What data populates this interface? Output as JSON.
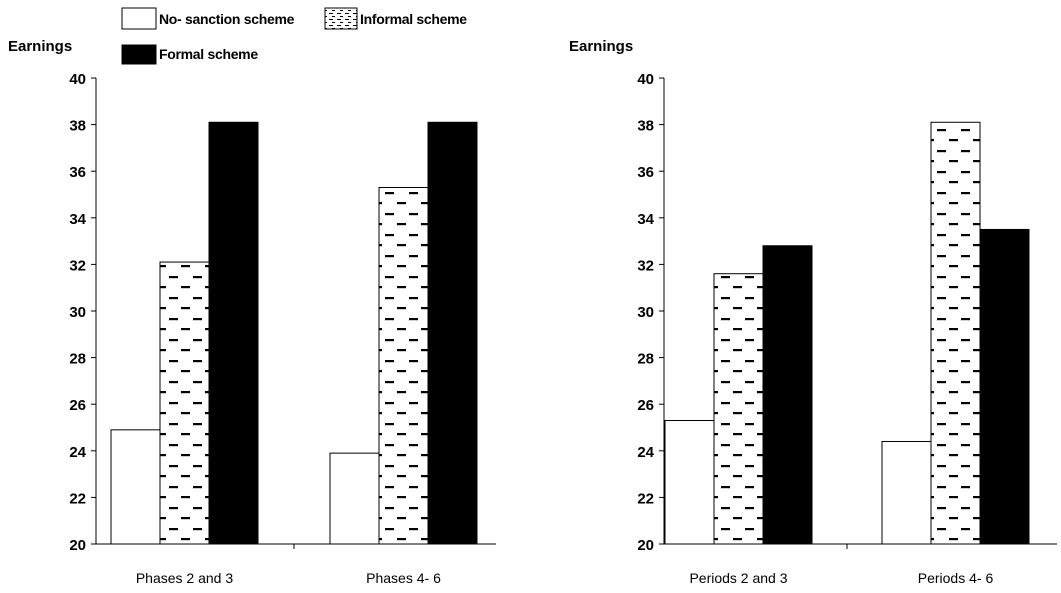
{
  "legend": {
    "items": [
      {
        "label": "No- sanction scheme",
        "fill": "white"
      },
      {
        "label": "Informal scheme",
        "fill": "dashed"
      },
      {
        "label": "Formal scheme",
        "fill": "black"
      }
    ]
  },
  "colors": {
    "formal": "#000000",
    "no_sanction": "#ffffff",
    "informal_pattern": "#000000"
  },
  "chart_data": [
    {
      "type": "bar",
      "ylabel": "Earnings",
      "ylim": [
        20,
        40
      ],
      "yticks": [
        "20",
        "22",
        "24",
        "26",
        "28",
        "30",
        "32",
        "34",
        "36",
        "38",
        "40"
      ],
      "categories": [
        "Phases 2 and 3",
        "Phases 4- 6"
      ],
      "series": [
        {
          "name": "No- sanction scheme",
          "values": [
            24.9,
            23.9
          ]
        },
        {
          "name": "Informal scheme",
          "values": [
            32.1,
            35.3
          ]
        },
        {
          "name": "Formal scheme",
          "values": [
            38.1,
            38.1
          ]
        }
      ],
      "grid": false
    },
    {
      "type": "bar",
      "ylabel": "Earnings",
      "ylim": [
        20,
        40
      ],
      "yticks": [
        "20",
        "22",
        "24",
        "26",
        "28",
        "30",
        "32",
        "34",
        "36",
        "38",
        "40"
      ],
      "categories": [
        "Periods 2 and 3",
        "Periods 4- 6"
      ],
      "series": [
        {
          "name": "No- sanction scheme",
          "values": [
            25.3,
            24.4
          ]
        },
        {
          "name": "Informal scheme",
          "values": [
            31.6,
            38.1
          ]
        },
        {
          "name": "Formal scheme",
          "values": [
            32.8,
            33.5
          ]
        }
      ],
      "grid": false
    }
  ]
}
